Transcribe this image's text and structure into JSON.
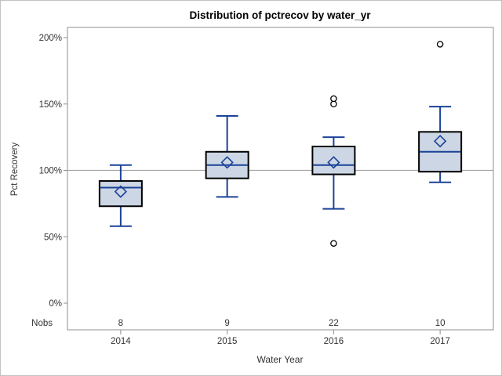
{
  "window": {
    "background": "#ffffff",
    "border_color": "#c3c3c3"
  },
  "chart_data": {
    "type": "box",
    "title": "Distribution of pctrecov by water_yr",
    "xlabel": "Water Year",
    "ylabel": "Pct Recovery",
    "nobs_label": "Nobs",
    "categories": [
      "2014",
      "2015",
      "2016",
      "2017"
    ],
    "nobs": [
      "8",
      "9",
      "22",
      "10"
    ],
    "y_ticks": [
      0,
      50,
      100,
      150,
      200
    ],
    "y_tick_labels": [
      "0%",
      "50%",
      "100%",
      "150%",
      "200%"
    ],
    "ylim": [
      -20,
      208
    ],
    "grid": false,
    "reference_line": 100,
    "series": [
      {
        "category": "2014",
        "whisker_low": 58,
        "q1": 73,
        "median": 87,
        "q3": 92,
        "whisker_high": 104,
        "mean": 84,
        "outliers": []
      },
      {
        "category": "2015",
        "whisker_low": 80,
        "q1": 94,
        "median": 104,
        "q3": 114,
        "whisker_high": 141,
        "mean": 106,
        "outliers": []
      },
      {
        "category": "2016",
        "whisker_low": 71,
        "q1": 97,
        "median": 104,
        "q3": 118,
        "whisker_high": 125,
        "mean": 106,
        "outliers": [
          45,
          150,
          154
        ]
      },
      {
        "category": "2017",
        "whisker_low": 91,
        "q1": 99,
        "median": 114,
        "q3": 129,
        "whisker_high": 148,
        "mean": 122,
        "outliers": [
          195
        ]
      }
    ],
    "colors": {
      "box_fill": "#ccd6e4",
      "box_border": "#000000",
      "line_blue": "#1b4298",
      "frame": "#8f8f8f",
      "reference_line": "#a6a6a6",
      "outlier_stroke": "#000000",
      "title_text": "#000000",
      "label_text": "#333333"
    }
  }
}
